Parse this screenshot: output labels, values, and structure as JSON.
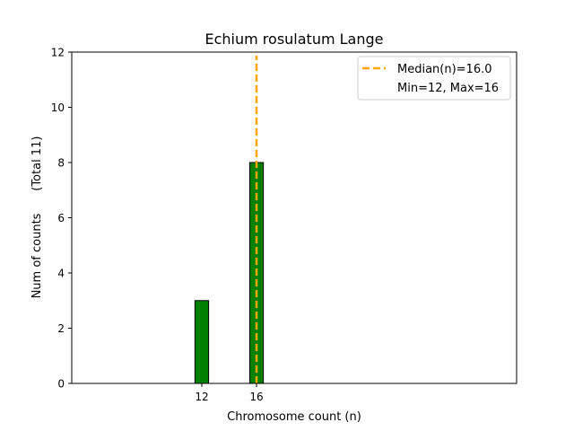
{
  "chart_data": {
    "type": "bar",
    "title": "Echium rosulatum Lange",
    "xlabel": "Chromosome count (n)",
    "ylabel": "Num of counts      (Total 11)",
    "x": [
      12,
      16
    ],
    "values": [
      3,
      8
    ],
    "xticks": [
      "12",
      "16"
    ],
    "yticks": [
      "0",
      "2",
      "4",
      "6",
      "8",
      "10",
      "12"
    ],
    "xlim": [
      2.5,
      35
    ],
    "ylim": [
      0,
      12
    ],
    "bar_width": 1,
    "bar_color": "#008000",
    "median": 16.0,
    "median_color": "#FFA500",
    "legend": {
      "position": "top-right",
      "entries": [
        "Median(n)=16.0",
        "Min=12, Max=16"
      ]
    },
    "grid": false
  }
}
